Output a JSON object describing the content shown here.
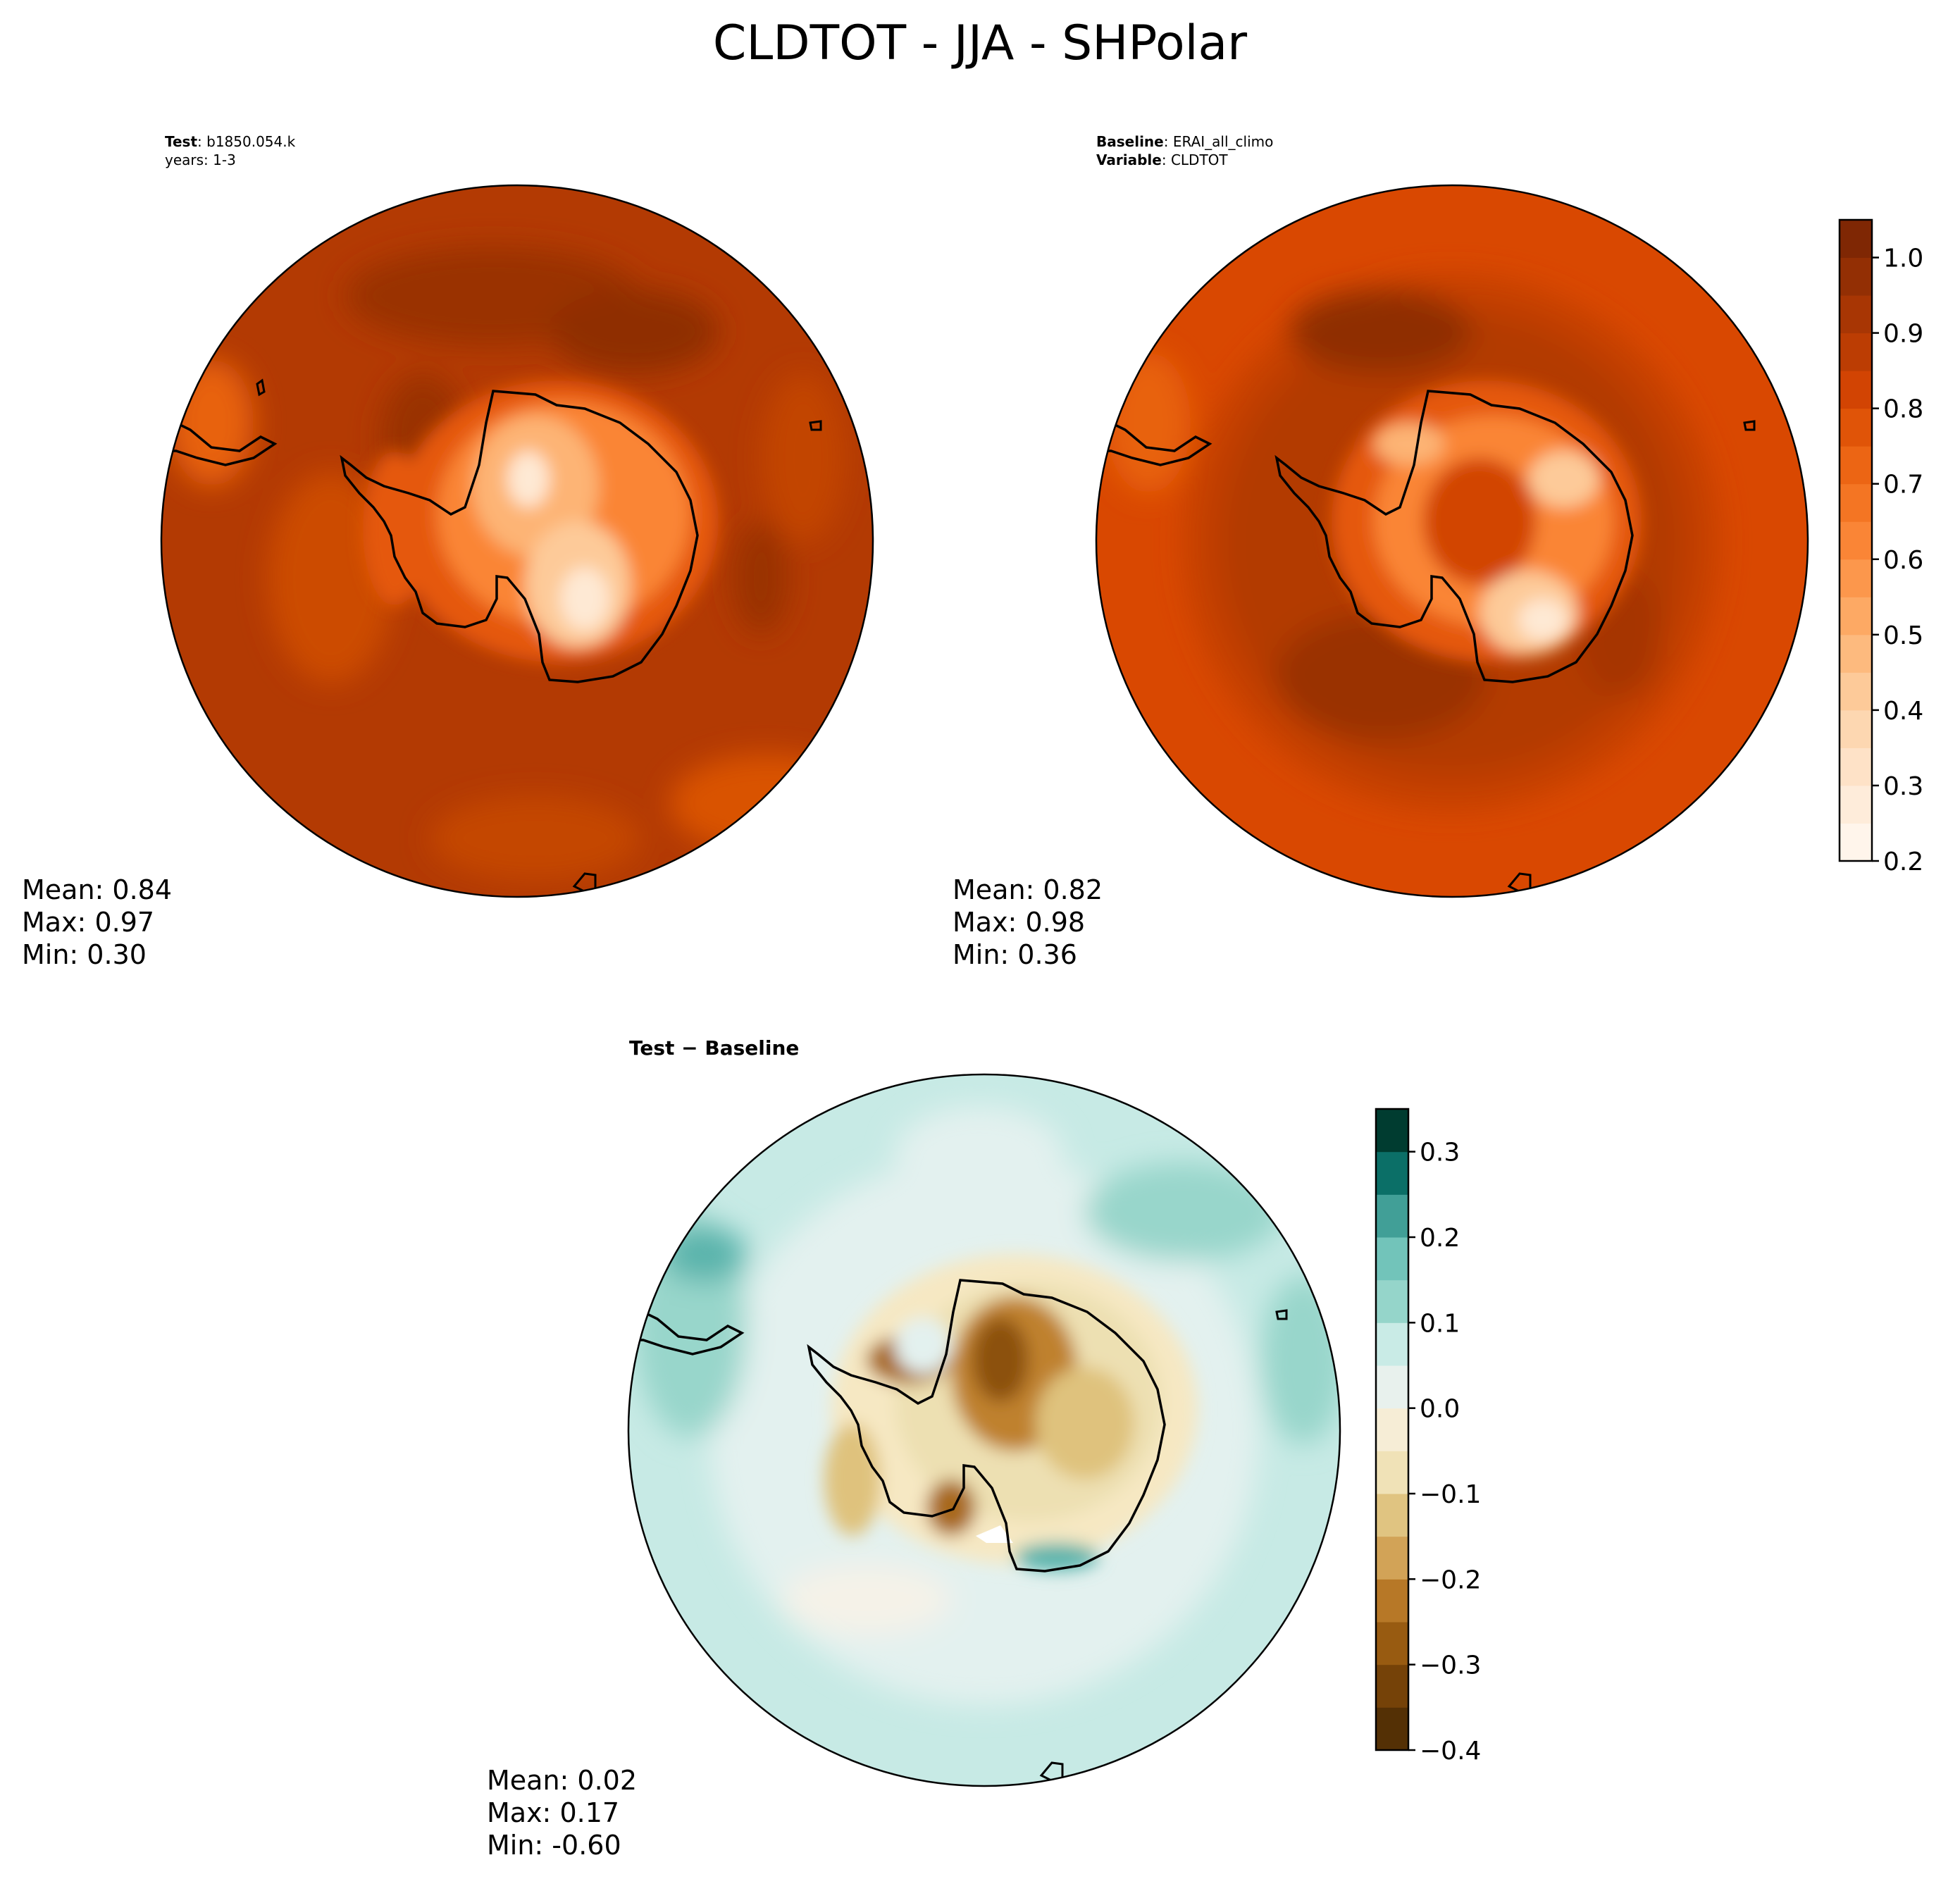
{
  "figure": {
    "title": "CLDTOT - JJA - SHPolar"
  },
  "panels": {
    "test": {
      "label_key": "Test",
      "label_value": "b1850.054.k",
      "line2": "years: 1-3",
      "stats": {
        "mean": "Mean:  0.84",
        "max": "Max:  0.97",
        "min": "Min:  0.30"
      }
    },
    "baseline": {
      "label_key": "Baseline",
      "label_value": "ERAI_all_climo",
      "line2_key": "Variable",
      "line2_value": "CLDTOT",
      "stats": {
        "mean": "Mean:  0.82",
        "max": "Max:  0.98",
        "min": "Min:  0.36"
      }
    },
    "diff": {
      "title": "Test − Baseline",
      "stats": {
        "mean": "Mean:  0.02",
        "max": "Max:  0.17",
        "min": "Min: -0.60"
      }
    }
  },
  "chart_data": [
    {
      "type": "heatmap",
      "panel": "Test",
      "projection": "south-polar-stereographic",
      "colormap": "Oranges",
      "levels": [
        0.2,
        0.25,
        0.3,
        0.35,
        0.4,
        0.45,
        0.5,
        0.55,
        0.6,
        0.65,
        0.7,
        0.75,
        0.8,
        0.85,
        0.9,
        0.95,
        1.0,
        1.05
      ],
      "mean": 0.84,
      "max": 0.97,
      "min": 0.3
    },
    {
      "type": "heatmap",
      "panel": "Baseline",
      "projection": "south-polar-stereographic",
      "colormap": "Oranges",
      "levels": [
        0.2,
        0.25,
        0.3,
        0.35,
        0.4,
        0.45,
        0.5,
        0.55,
        0.6,
        0.65,
        0.7,
        0.75,
        0.8,
        0.85,
        0.9,
        0.95,
        1.0,
        1.05
      ],
      "colorbar_ticks": [
        "0.2",
        "0.3",
        "0.4",
        "0.5",
        "0.6",
        "0.7",
        "0.8",
        "0.9",
        "1.0"
      ],
      "mean": 0.82,
      "max": 0.98,
      "min": 0.36
    },
    {
      "type": "heatmap",
      "panel": "Test − Baseline",
      "projection": "south-polar-stereographic",
      "colormap": "BrBG",
      "levels": [
        -0.4,
        -0.35,
        -0.3,
        -0.25,
        -0.2,
        -0.15,
        -0.1,
        -0.05,
        0.0,
        0.05,
        0.1,
        0.15,
        0.2,
        0.25,
        0.3,
        0.35
      ],
      "colorbar_ticks": [
        "−0.4",
        "−0.3",
        "−0.2",
        "−0.1",
        "0.0",
        "0.1",
        "0.2",
        "0.3"
      ],
      "mean": 0.02,
      "max": 0.17,
      "min": -0.6
    }
  ],
  "colors": {
    "oranges": [
      "#fff5eb",
      "#fee9d4",
      "#fddbb9",
      "#fdca99",
      "#fdb475",
      "#fd9d53",
      "#fa8536",
      "#f2701d",
      "#e5590a",
      "#d24403",
      "#b53a03",
      "#9a3104",
      "#7f2704"
    ],
    "brbg": [
      "#543005",
      "#6f3e07",
      "#8c510a",
      "#a8691b",
      "#bf812d",
      "#d5a95e",
      "#dfc27d",
      "#ede0b2",
      "#f6e8c3",
      "#f5f2e8",
      "#e3f1ef",
      "#c7eae5",
      "#98d6cb",
      "#80cdc1",
      "#5ab4ac",
      "#2e8f88",
      "#01665e",
      "#003c30"
    ]
  }
}
